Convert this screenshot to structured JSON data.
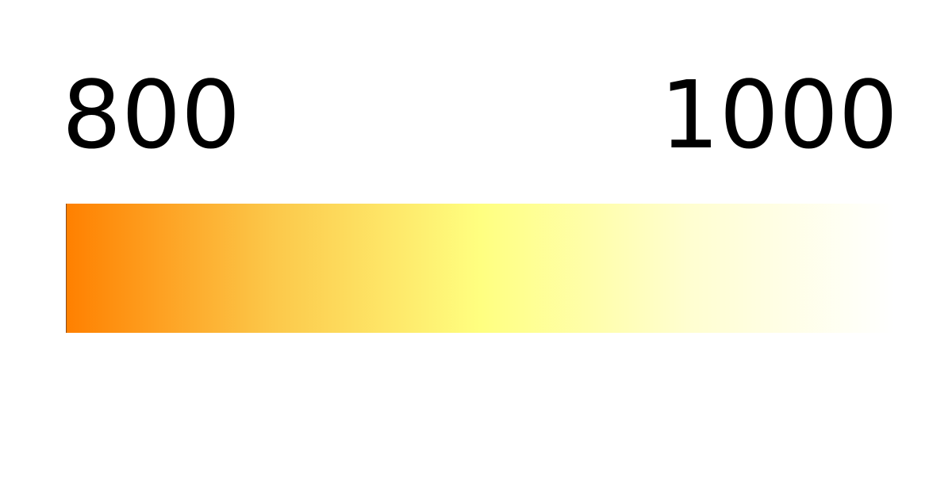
{
  "legend": {
    "min_label": "800",
    "max_label": "1000",
    "min_value": 800,
    "max_value": 1000,
    "color_stops": [
      {
        "value": 800,
        "color": "#ff8000"
      },
      {
        "value": 850,
        "color": "#fcc84a"
      },
      {
        "value": 900,
        "color": "#ffff80"
      },
      {
        "value": 950,
        "color": "#fffed0"
      },
      {
        "value": 1000,
        "color": "#ffffff"
      }
    ]
  }
}
